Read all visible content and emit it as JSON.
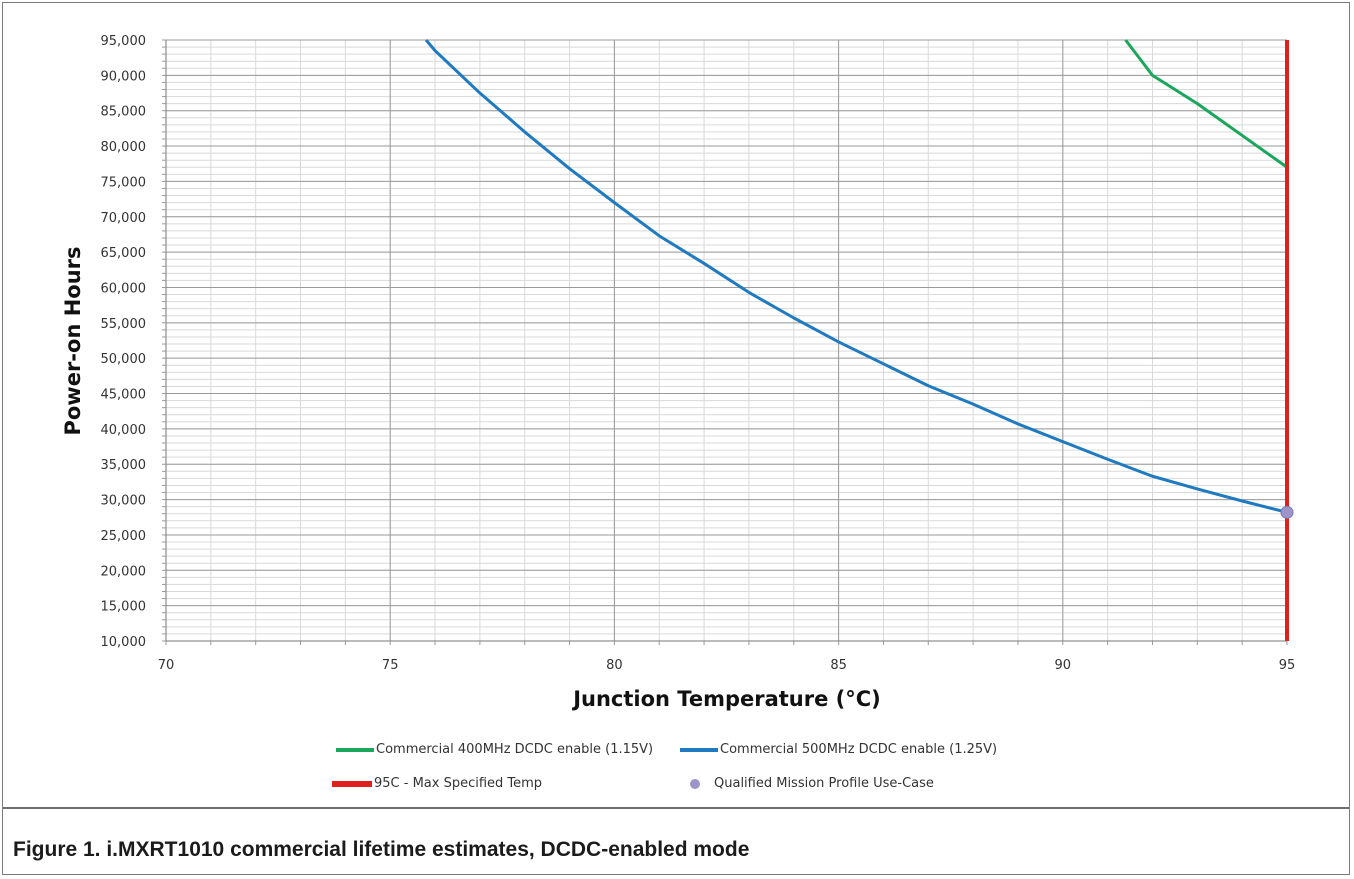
{
  "figure": {
    "caption": "Figure 1.  i.MXRT1010 commercial lifetime estimates, DCDC-enabled mode"
  },
  "chart_data": {
    "type": "line",
    "xlabel": "Junction Temperature (°C)",
    "ylabel": "Power-on Hours",
    "xlim": [
      70,
      95
    ],
    "ylim": [
      10000,
      95000
    ],
    "x_ticks": [
      "70",
      "75",
      "80",
      "85",
      "90",
      "95"
    ],
    "y_ticks": [
      "10,000",
      "15,000",
      "20,000",
      "25,000",
      "30,000",
      "35,000",
      "40,000",
      "45,000",
      "50,000",
      "55,000",
      "60,000",
      "65,000",
      "70,000",
      "75,000",
      "80,000",
      "85,000",
      "90,000",
      "95,000"
    ],
    "grid": true,
    "legend_position": "bottom",
    "series": [
      {
        "name": "Commercial 400MHz DCDC enable (1.15V)",
        "color": "#1aa65b",
        "x": [
          91.4,
          92,
          93,
          94,
          95
        ],
        "y": [
          95000,
          90000,
          86000,
          81500,
          77000
        ]
      },
      {
        "name": "Commercial 500MHz DCDC enable (1.25V)",
        "color": "#1f7ac0",
        "x": [
          75.8,
          76,
          77,
          78,
          79,
          80,
          81,
          82,
          83,
          84,
          85,
          86,
          87,
          88,
          89,
          90,
          91,
          92,
          93,
          94,
          95
        ],
        "y": [
          95000,
          93500,
          87500,
          82000,
          76800,
          72000,
          67300,
          63400,
          59300,
          55700,
          52300,
          49200,
          46100,
          43500,
          40700,
          38200,
          35700,
          33300,
          31500,
          29800,
          28200
        ]
      },
      {
        "name": "95C - Max Specified Temp",
        "color": "#e0201d",
        "x": [
          95,
          95
        ],
        "y": [
          10000,
          95000
        ]
      },
      {
        "name": "Qualified Mission Profile Use-Case",
        "color": "#9b95c9",
        "marker": "circle",
        "x": [
          95
        ],
        "y": [
          28200
        ]
      }
    ]
  }
}
